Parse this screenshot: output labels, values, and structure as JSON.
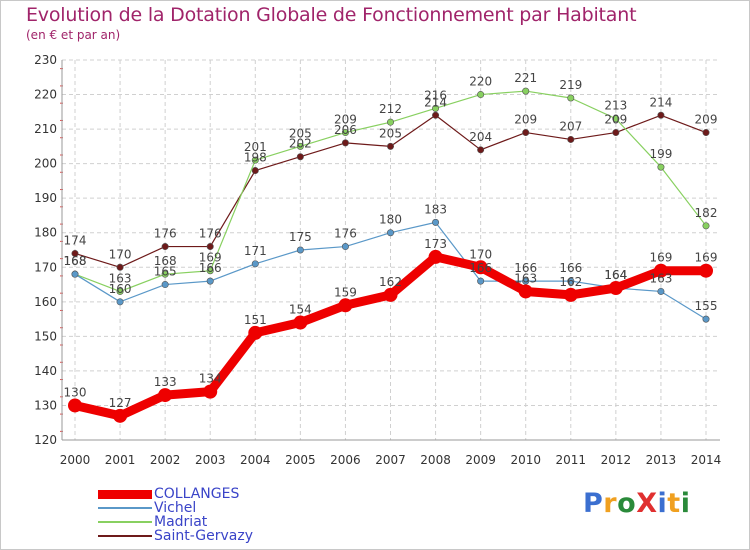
{
  "title": "Evolution de la Dotation Globale de Fonctionnement par Habitant",
  "subtitle": "(en € et par an)",
  "logo": {
    "text": "ProXiti",
    "colors": [
      "#3b6fd0",
      "#f0a020",
      "#2a8a3a",
      "#e03030",
      "#3b6fd0",
      "#f0a020",
      "#2a8a3a"
    ]
  },
  "chart_data": {
    "type": "line",
    "title": "Evolution de la Dotation Globale de Fonctionnement par Habitant",
    "subtitle": "(en € et par an)",
    "x": [
      2000,
      2001,
      2002,
      2003,
      2004,
      2005,
      2006,
      2007,
      2008,
      2009,
      2010,
      2011,
      2012,
      2013,
      2014
    ],
    "ylim": [
      120,
      230
    ],
    "yticks": [
      120,
      130,
      140,
      150,
      160,
      170,
      180,
      190,
      200,
      210,
      220,
      230
    ],
    "grid": true,
    "legend": "bottom-left",
    "series": [
      {
        "name": "Saint-Gervazy",
        "color": "#6e1a1a",
        "values": [
          174,
          170,
          176,
          176,
          198,
          202,
          206,
          205,
          214,
          204,
          209,
          207,
          209,
          214,
          209
        ]
      },
      {
        "name": "Madriat",
        "color": "#88d060",
        "values": [
          168,
          163,
          168,
          169,
          201,
          205,
          209,
          212,
          216,
          220,
          221,
          219,
          213,
          199,
          182
        ]
      },
      {
        "name": "Vichel",
        "color": "#5a98c8",
        "values": [
          168,
          160,
          165,
          166,
          171,
          175,
          176,
          180,
          183,
          166,
          166,
          166,
          164,
          163,
          155
        ]
      },
      {
        "name": "COLLANGES",
        "color": "#ee0000",
        "values": [
          130,
          127,
          133,
          134,
          151,
          154,
          159,
          162,
          173,
          170,
          163,
          162,
          164,
          169,
          169
        ]
      }
    ]
  }
}
